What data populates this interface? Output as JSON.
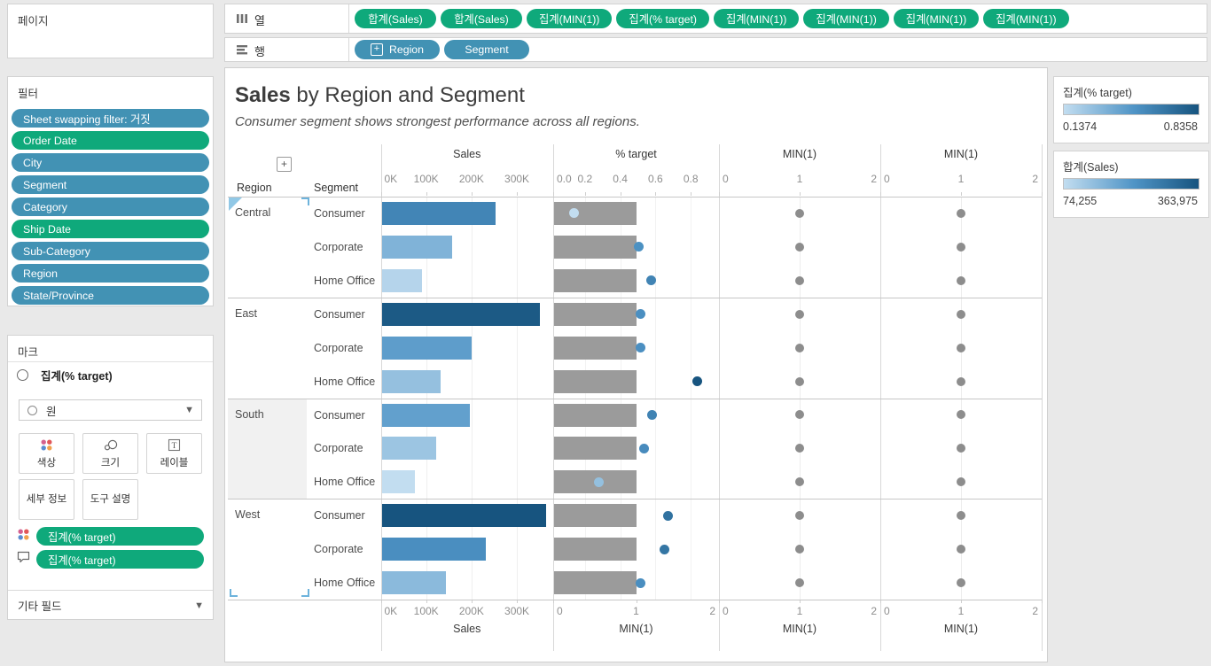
{
  "shelves": {
    "pages": {
      "title": "페이지"
    },
    "columns": {
      "label": "열",
      "pills": [
        "합계(Sales)",
        "합계(Sales)",
        "집계(MIN(1))",
        "집계(% target)",
        "집계(MIN(1))",
        "집계(MIN(1))",
        "집계(MIN(1))",
        "집계(MIN(1))"
      ]
    },
    "rows": {
      "label": "행",
      "pills": [
        {
          "label": "Region",
          "expand": true
        },
        {
          "label": "Segment",
          "expand": false
        }
      ]
    }
  },
  "filters": {
    "title": "필터",
    "pills": [
      {
        "label": "Sheet swapping filter: 거짓",
        "color": "blue"
      },
      {
        "label": "Order Date",
        "color": "green"
      },
      {
        "label": "City",
        "color": "blue"
      },
      {
        "label": "Segment",
        "color": "blue"
      },
      {
        "label": "Category",
        "color": "blue"
      },
      {
        "label": "Ship Date",
        "color": "green"
      },
      {
        "label": "Sub-Category",
        "color": "blue"
      },
      {
        "label": "Region",
        "color": "blue"
      },
      {
        "label": "State/Province",
        "color": "blue"
      }
    ]
  },
  "marks": {
    "title": "마크",
    "card_label": "집계(% target)",
    "mark_type": {
      "label": "원"
    },
    "buttons": [
      {
        "label": "색상",
        "icon": "color"
      },
      {
        "label": "크기",
        "icon": "size"
      },
      {
        "label": "레이블",
        "icon": "label"
      },
      {
        "label": "세부 정보",
        "icon": null
      },
      {
        "label": "도구 설명",
        "icon": null
      }
    ],
    "encodings": [
      {
        "icon": "color",
        "label": "집계(% target)"
      },
      {
        "icon": "tooltip",
        "label": "집계(% target)"
      }
    ],
    "other_fields": "기타 필드"
  },
  "legends": [
    {
      "title": "집계(% target)",
      "min_label": "0.1374",
      "max_label": "0.8358"
    },
    {
      "title": "합계(Sales)",
      "min_label": "74,255",
      "max_label": "363,975"
    }
  ],
  "chart_data": {
    "type": "bar",
    "title_emphasis": "Sales",
    "title_rest": " by Region and Segment",
    "subtitle": "Consumer segment shows strongest performance across all regions.",
    "row_dimensions": [
      "Region",
      "Segment"
    ],
    "columns": [
      {
        "id": "sales",
        "header": "Sales",
        "axis_top": {
          "ticks": [
            0,
            100000,
            200000,
            300000
          ],
          "tick_labels": [
            "0K",
            "100K",
            "200K",
            "300K"
          ],
          "domain": [
            0,
            380000
          ]
        },
        "axis_bottom": {
          "label": "Sales",
          "ticks": [
            0,
            100000,
            200000,
            300000
          ],
          "tick_labels": [
            "0K",
            "100K",
            "200K",
            "300K"
          ]
        }
      },
      {
        "id": "pct_target",
        "header": "% target",
        "axis_top": {
          "ticks": [
            0.0,
            0.2,
            0.4,
            0.6,
            0.8
          ],
          "tick_labels": [
            "0.0",
            "0.2",
            "0.4",
            "0.6",
            "0.8"
          ],
          "domain": [
            0.02,
            0.96
          ]
        },
        "axis_bottom": {
          "label": "MIN(1)",
          "ticks": [
            0,
            1,
            2
          ],
          "tick_labels": [
            "0",
            "1",
            "2"
          ],
          "domain": [
            0,
            2
          ]
        }
      },
      {
        "id": "min1_a",
        "header": "MIN(1)",
        "axis_top": {
          "ticks": [
            0,
            1,
            2
          ],
          "tick_labels": [
            "0",
            "1",
            "2"
          ],
          "domain": [
            0,
            2
          ]
        },
        "axis_bottom": {
          "label": "MIN(1)",
          "ticks": [
            0,
            1,
            2
          ],
          "tick_labels": [
            "0",
            "1",
            "2"
          ],
          "domain": [
            0,
            2
          ]
        }
      },
      {
        "id": "min1_b",
        "header": "MIN(1)",
        "axis_top": {
          "ticks": [
            0,
            1,
            2
          ],
          "tick_labels": [
            "0",
            "1",
            "2"
          ],
          "domain": [
            0,
            2
          ]
        },
        "axis_bottom": {
          "label": "MIN(1)",
          "ticks": [
            0,
            1,
            2
          ],
          "tick_labels": [
            "0",
            "1",
            "2"
          ],
          "domain": [
            0,
            2
          ]
        }
      }
    ],
    "rows": [
      {
        "region": "Central",
        "segment": "Consumer",
        "sales": 252031,
        "pct_target": 0.1374,
        "min1": 1
      },
      {
        "region": "Central",
        "segment": "Corporate",
        "sales": 157996,
        "pct_target": 0.505,
        "min1": 1
      },
      {
        "region": "Central",
        "segment": "Home Office",
        "sales": 91213,
        "pct_target": 0.575,
        "min1": 1
      },
      {
        "region": "East",
        "segment": "Consumer",
        "sales": 350908,
        "pct_target": 0.513,
        "min1": 1
      },
      {
        "region": "East",
        "segment": "Corporate",
        "sales": 200409,
        "pct_target": 0.513,
        "min1": 1
      },
      {
        "region": "East",
        "segment": "Home Office",
        "sales": 131268,
        "pct_target": 0.8358,
        "min1": 1
      },
      {
        "region": "South",
        "segment": "Consumer",
        "sales": 195581,
        "pct_target": 0.58,
        "min1": 1
      },
      {
        "region": "South",
        "segment": "Corporate",
        "sales": 121886,
        "pct_target": 0.533,
        "min1": 1
      },
      {
        "region": "South",
        "segment": "Home Office",
        "sales": 74255,
        "pct_target": 0.278,
        "min1": 1
      },
      {
        "region": "West",
        "segment": "Consumer",
        "sales": 363975,
        "pct_target": 0.672,
        "min1": 1
      },
      {
        "region": "West",
        "segment": "Corporate",
        "sales": 232085,
        "pct_target": 0.653,
        "min1": 1
      },
      {
        "region": "West",
        "segment": "Home Office",
        "sales": 143118,
        "pct_target": 0.517,
        "min1": 1
      }
    ],
    "color_ramp": {
      "stops": [
        "#c2ddf0",
        "#4f94c6",
        "#17547f"
      ],
      "sales_domain": [
        74255,
        363975
      ],
      "pct_domain": [
        0.1374,
        0.8358
      ]
    },
    "gray_bar": {
      "value": 1,
      "color": "#9b9b9b"
    },
    "gray_dot": {
      "value": 1,
      "color": "#8d8d8d"
    },
    "legend_position": "right",
    "grid": true
  }
}
